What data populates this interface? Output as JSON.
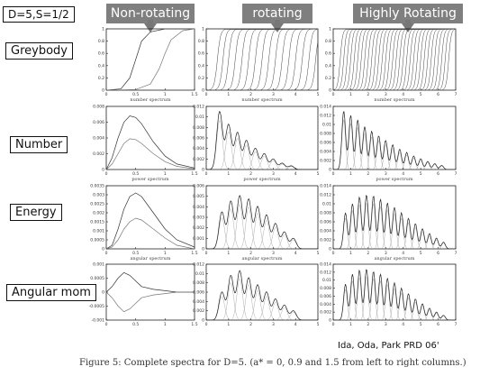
{
  "config_label": "D=5,S=1/2",
  "columns": [
    {
      "header": "Non-rotating",
      "color": "#7f7f7f"
    },
    {
      "header": "rotating",
      "color": "#7f7f7f"
    },
    {
      "header": "Highly Rotating",
      "color": "#7f7f7f"
    }
  ],
  "rows": [
    "Greybody",
    "Number",
    "Energy",
    "Angular mom"
  ],
  "citation": "Ida, Oda, Park PRD 06'",
  "caption": "Figure 5: Complete spectra for D=5. (a* = 0, 0.9 and 1.5 from left to right columns.)",
  "chart_data": [
    {
      "type": "line",
      "row": "Greybody",
      "column": "Non-rotating",
      "xlabel": "number spectrum",
      "xlim": [
        0,
        1.5
      ],
      "ylim": [
        0,
        1
      ],
      "x_ticks": [
        "0",
        "0.5",
        "1",
        "1.5"
      ],
      "y_ticks": [
        "0",
        "0.2",
        "0.4",
        "0.6",
        "0.8",
        "1"
      ],
      "series": [
        {
          "x": [
            0,
            0.25,
            0.4,
            0.5,
            0.6,
            0.75,
            1.0,
            1.5
          ],
          "y": [
            0,
            0.02,
            0.2,
            0.5,
            0.8,
            0.95,
            1,
            1
          ]
        },
        {
          "x": [
            0,
            0.5,
            0.75,
            0.9,
            1.0,
            1.1,
            1.3,
            1.5
          ],
          "y": [
            0,
            0.01,
            0.1,
            0.35,
            0.6,
            0.82,
            0.97,
            1
          ]
        }
      ]
    },
    {
      "type": "line",
      "row": "Greybody",
      "column": "rotating",
      "xlabel": "number spectrum",
      "xlim": [
        0,
        5
      ],
      "ylim": [
        0,
        1
      ],
      "x_ticks": [
        "0",
        "1",
        "2",
        "3",
        "4",
        "5"
      ],
      "y_ticks": [
        "0",
        "0.2",
        "0.4",
        "0.6",
        "0.8",
        "1"
      ],
      "steps": [
        0.5,
        0.75,
        1.0,
        1.3,
        1.6,
        1.9,
        2.2,
        2.5,
        2.8,
        3.1,
        3.4,
        3.7,
        4.0,
        4.3,
        4.6,
        4.9
      ]
    },
    {
      "type": "line",
      "row": "Greybody",
      "column": "Highly Rotating",
      "xlabel": "number spectrum",
      "xlim": [
        0,
        7
      ],
      "ylim": [
        0,
        1
      ],
      "x_ticks": [
        "0",
        "1",
        "2",
        "3",
        "4",
        "5",
        "6",
        "7"
      ],
      "y_ticks": [
        "0",
        "0.2",
        "0.4",
        "0.6",
        "0.8",
        "1"
      ],
      "steps": [
        0.4,
        0.6,
        0.8,
        1.0,
        1.2,
        1.4,
        1.6,
        1.8,
        2.0,
        2.2,
        2.4,
        2.6,
        2.8,
        3.0,
        3.2,
        3.4,
        3.6,
        3.8,
        4.0,
        4.2,
        4.4,
        4.6,
        4.8,
        5.0,
        5.2,
        5.4,
        5.6,
        5.8,
        6.0,
        6.2,
        6.4,
        6.6
      ]
    },
    {
      "type": "line",
      "row": "Number",
      "column": "Non-rotating",
      "xlabel": "power spectrum",
      "xlim": [
        0,
        1.5
      ],
      "ylim": [
        0,
        0.008
      ],
      "x_ticks": [
        "0",
        "0.5",
        "1",
        "1.5"
      ],
      "y_ticks": [
        "0",
        "0.002",
        "0.004",
        "0.006",
        "0.008"
      ],
      "series": [
        {
          "x": [
            0,
            0.1,
            0.2,
            0.3,
            0.4,
            0.5,
            0.6,
            0.8,
            1.0,
            1.2,
            1.5
          ],
          "y": [
            0,
            0.0015,
            0.004,
            0.006,
            0.0068,
            0.0066,
            0.0058,
            0.0035,
            0.0017,
            0.0007,
            0.0002
          ]
        },
        {
          "x": [
            0,
            0.1,
            0.2,
            0.3,
            0.4,
            0.5,
            0.6,
            0.8,
            1.0,
            1.2,
            1.5
          ],
          "y": [
            0,
            0.0007,
            0.002,
            0.0033,
            0.0039,
            0.0038,
            0.0033,
            0.002,
            0.001,
            0.0004,
            0.0001
          ]
        }
      ]
    },
    {
      "type": "line",
      "row": "Number",
      "column": "rotating",
      "xlabel": "power spectrum",
      "xlim": [
        0,
        5
      ],
      "ylim": [
        0,
        0.012
      ],
      "x_ticks": [
        "0",
        "1",
        "2",
        "3",
        "4",
        "5"
      ],
      "y_ticks": [
        "0",
        "0.002",
        "0.004",
        "0.006",
        "0.008",
        "0.01",
        "0.012"
      ],
      "peaks": {
        "centers": [
          0.6,
          1.0,
          1.4,
          1.8,
          2.2,
          2.6,
          3.0,
          3.4,
          3.8
        ],
        "heights": [
          0.011,
          0.0085,
          0.007,
          0.0055,
          0.004,
          0.003,
          0.002,
          0.0012,
          0.0007
        ],
        "width": 0.18
      }
    },
    {
      "type": "line",
      "row": "Number",
      "column": "Highly Rotating",
      "xlabel": "power spectrum",
      "xlim": [
        0,
        7
      ],
      "ylim": [
        0,
        0.014
      ],
      "x_ticks": [
        "0",
        "1",
        "2",
        "3",
        "4",
        "5",
        "6",
        "7"
      ],
      "y_ticks": [
        "0",
        "0.002",
        "0.004",
        "0.006",
        "0.008",
        "0.01",
        "0.012",
        "0.014"
      ],
      "peaks": {
        "centers": [
          0.6,
          1.0,
          1.4,
          1.8,
          2.2,
          2.6,
          3.0,
          3.4,
          3.8,
          4.2,
          4.6,
          5.0,
          5.4,
          5.8,
          6.2
        ],
        "heights": [
          0.013,
          0.012,
          0.011,
          0.0095,
          0.0085,
          0.0075,
          0.0065,
          0.0055,
          0.0045,
          0.0038,
          0.003,
          0.0024,
          0.0018,
          0.0013,
          0.0009
        ],
        "width": 0.15
      }
    },
    {
      "type": "line",
      "row": "Energy",
      "column": "Non-rotating",
      "xlabel": "angular spectrum",
      "xlim": [
        0,
        1.5
      ],
      "ylim": [
        0,
        0.0035
      ],
      "x_ticks": [
        "0",
        "0.5",
        "1",
        "1.5"
      ],
      "y_ticks": [
        "0",
        "0.0005",
        "0.001",
        "0.0015",
        "0.002",
        "0.0025",
        "0.003",
        "0.0035"
      ],
      "series": [
        {
          "x": [
            0,
            0.1,
            0.2,
            0.3,
            0.4,
            0.5,
            0.6,
            0.8,
            1.0,
            1.2,
            1.5
          ],
          "y": [
            0,
            0.0002,
            0.0011,
            0.0022,
            0.0029,
            0.0031,
            0.0029,
            0.002,
            0.0011,
            0.0005,
            0.0001
          ]
        },
        {
          "x": [
            0,
            0.1,
            0.2,
            0.3,
            0.4,
            0.5,
            0.6,
            0.8,
            1.0,
            1.2,
            1.5
          ],
          "y": [
            0,
            0.0001,
            0.0005,
            0.0011,
            0.0015,
            0.0017,
            0.0016,
            0.0011,
            0.0006,
            0.0002,
            0
          ]
        }
      ]
    },
    {
      "type": "line",
      "row": "Energy",
      "column": "rotating",
      "xlabel": "angular spectrum",
      "xlim": [
        0,
        5
      ],
      "ylim": [
        0,
        0.006
      ],
      "x_ticks": [
        "0",
        "1",
        "2",
        "3",
        "4",
        "5"
      ],
      "y_ticks": [
        "0",
        "0.001",
        "0.002",
        "0.003",
        "0.004",
        "0.005",
        "0.006"
      ],
      "peaks": {
        "centers": [
          0.7,
          1.1,
          1.5,
          1.9,
          2.3,
          2.7,
          3.1,
          3.5,
          3.9
        ],
        "heights": [
          0.0035,
          0.0045,
          0.005,
          0.0047,
          0.004,
          0.0032,
          0.0024,
          0.0016,
          0.001
        ],
        "width": 0.18
      }
    },
    {
      "type": "line",
      "row": "Energy",
      "column": "Highly Rotating",
      "xlabel": "angular spectrum",
      "xlim": [
        0,
        7
      ],
      "ylim": [
        0,
        0.014
      ],
      "x_ticks": [
        "0",
        "1",
        "2",
        "3",
        "4",
        "5",
        "6",
        "7"
      ],
      "y_ticks": [
        "0",
        "0.002",
        "0.004",
        "0.006",
        "0.008",
        "0.01",
        "0.012",
        "0.014"
      ],
      "peaks": {
        "centers": [
          0.7,
          1.1,
          1.5,
          1.9,
          2.3,
          2.7,
          3.1,
          3.5,
          3.9,
          4.3,
          4.7,
          5.1,
          5.5,
          5.9,
          6.3
        ],
        "heights": [
          0.008,
          0.01,
          0.0115,
          0.012,
          0.0118,
          0.011,
          0.0102,
          0.0092,
          0.008,
          0.0068,
          0.0056,
          0.0045,
          0.0034,
          0.0024,
          0.0015
        ],
        "width": 0.15
      }
    },
    {
      "type": "line",
      "row": "Angular mom",
      "column": "Non-rotating",
      "xlabel": "",
      "xlim": [
        0,
        1.5
      ],
      "ylim": [
        -0.001,
        0.001
      ],
      "x_ticks": [
        "0",
        "0.5",
        "1",
        "1.5"
      ],
      "y_ticks": [
        "-0.001",
        "-0.0005",
        "0",
        "0.0005",
        "0.001"
      ],
      "series": [
        {
          "x": [
            0,
            0.1,
            0.2,
            0.3,
            0.4,
            0.5,
            0.6,
            0.8,
            1.0,
            1.2,
            1.5
          ],
          "y": [
            0,
            0.0002,
            0.0005,
            0.0007,
            0.0006,
            0.0004,
            0.0002,
            0.0001,
            5e-05,
            0,
            0
          ]
        },
        {
          "x": [
            0,
            0.1,
            0.2,
            0.3,
            0.4,
            0.5,
            0.6,
            0.8,
            1.0,
            1.2,
            1.5
          ],
          "y": [
            0,
            -0.0002,
            -0.0005,
            -0.0007,
            -0.0006,
            -0.0004,
            -0.0002,
            -0.0001,
            -5e-05,
            0,
            0
          ]
        }
      ]
    },
    {
      "type": "line",
      "row": "Angular mom",
      "column": "rotating",
      "xlabel": "",
      "xlim": [
        0,
        5
      ],
      "ylim": [
        0,
        0.012
      ],
      "x_ticks": [
        "0",
        "1",
        "2",
        "3",
        "4",
        "5"
      ],
      "y_ticks": [
        "0",
        "0.002",
        "0.004",
        "0.006",
        "0.008",
        "0.01",
        "0.012"
      ],
      "peaks": {
        "centers": [
          0.7,
          1.1,
          1.5,
          1.9,
          2.3,
          2.7,
          3.1,
          3.5,
          3.9
        ],
        "heights": [
          0.006,
          0.0095,
          0.0105,
          0.009,
          0.0075,
          0.006,
          0.0045,
          0.0032,
          0.002
        ],
        "width": 0.18
      }
    },
    {
      "type": "line",
      "row": "Angular mom",
      "column": "Highly Rotating",
      "xlabel": "",
      "xlim": [
        0,
        7
      ],
      "ylim": [
        0,
        0.014
      ],
      "x_ticks": [
        "0",
        "1",
        "2",
        "3",
        "4",
        "5",
        "6",
        "7"
      ],
      "y_ticks": [
        "0",
        "0.002",
        "0.004",
        "0.006",
        "0.008",
        "0.01",
        "0.012",
        "0.014"
      ],
      "peaks": {
        "centers": [
          0.7,
          1.1,
          1.5,
          1.9,
          2.3,
          2.7,
          3.1,
          3.5,
          3.9,
          4.3,
          4.7,
          5.1,
          5.5,
          5.9,
          6.3
        ],
        "heights": [
          0.009,
          0.0115,
          0.0125,
          0.0128,
          0.0122,
          0.0115,
          0.0105,
          0.0093,
          0.008,
          0.0066,
          0.0053,
          0.0041,
          0.003,
          0.002,
          0.0012
        ],
        "width": 0.15
      }
    }
  ]
}
